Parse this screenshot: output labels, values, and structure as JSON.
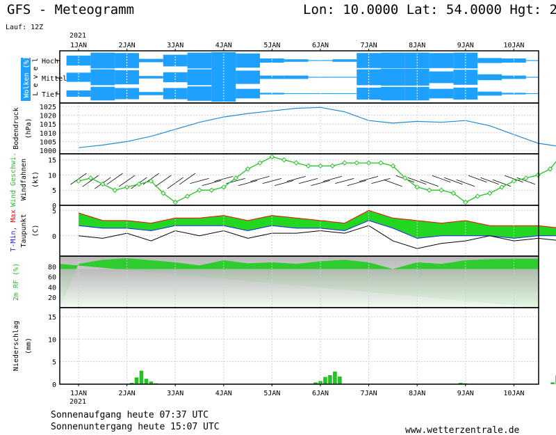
{
  "header": {
    "title": "GFS - Meteogramm",
    "location": "Lon: 10.0000 Lat: 54.0000 Hgt: 2",
    "run": "Lauf: 12Z",
    "year": "2021"
  },
  "dates": [
    "1JAN",
    "2JAN",
    "3JAN",
    "4JAN",
    "5JAN",
    "6JAN",
    "7JAN",
    "8JAN",
    "9JAN",
    "10JAN"
  ],
  "footer": {
    "sunrise": "Sonnenaufgang heute 07:37 UTC",
    "sunset": "Sonnenuntergang heute 15:07 UTC",
    "website": "www.wetterzentrale.de"
  },
  "colors": {
    "cloud": "#1ea0ff",
    "pressure": "#1e8cd2",
    "wind": "#22c322",
    "tmax": "#ff0000",
    "tmin": "#1e1eff",
    "temp_fill": "#22d622",
    "rh_fill": "#2fcc2f",
    "precip": "#22c322"
  },
  "chart_data": [
    {
      "type": "heatmap",
      "name": "clouds",
      "ylabel": "Wolken (%)",
      "ylabel2": "L e v e l",
      "levels": [
        "Hoch",
        "Mittel",
        "Tief"
      ],
      "x": [
        0,
        0.5,
        1,
        1.5,
        2,
        2.5,
        3,
        3.5,
        4,
        4.5,
        5,
        5.5,
        6,
        6.5,
        7,
        7.5,
        8,
        8.5,
        9,
        9.5
      ],
      "values": {
        "Hoch": [
          60,
          95,
          90,
          20,
          70,
          95,
          100,
          85,
          25,
          15,
          5,
          15,
          90,
          95,
          95,
          90,
          95,
          30,
          25,
          5
        ],
        "Mittel": [
          55,
          95,
          85,
          15,
          60,
          95,
          100,
          80,
          20,
          20,
          5,
          5,
          95,
          100,
          100,
          70,
          90,
          35,
          20,
          5
        ],
        "Tief": [
          40,
          85,
          70,
          20,
          70,
          90,
          100,
          60,
          10,
          5,
          5,
          5,
          75,
          85,
          85,
          60,
          75,
          25,
          10,
          5
        ]
      }
    },
    {
      "type": "line",
      "name": "pressure",
      "ylabel": "Bodendruck",
      "unit": "(hPa)",
      "ylim": [
        998,
        1027
      ],
      "yticks": [
        1000,
        1005,
        1010,
        1015,
        1020,
        1025
      ],
      "x": [
        0,
        0.5,
        1,
        1.5,
        2,
        2.5,
        3,
        3.5,
        4,
        4.5,
        5,
        5.5,
        6,
        6.5,
        7,
        7.5,
        8,
        8.5,
        9,
        9.5,
        10,
        10.5
      ],
      "values": [
        1001.5,
        1003,
        1005,
        1008,
        1012,
        1016,
        1019,
        1021,
        1022.5,
        1024,
        1024.5,
        1022,
        1017,
        1015.5,
        1016.5,
        1016,
        1017,
        1014,
        1009,
        1004,
        1002,
        1002.5
      ]
    },
    {
      "type": "line",
      "name": "wind",
      "ylabel": "Wind Geschwi.",
      "ylabel2": "Windfahnen",
      "unit": "(kt)",
      "ylim": [
        0,
        17
      ],
      "yticks": [
        0,
        5,
        10,
        15
      ],
      "x": [
        0,
        0.25,
        0.5,
        0.75,
        1,
        1.25,
        1.5,
        1.75,
        2,
        2.25,
        2.5,
        2.75,
        3,
        3.25,
        3.5,
        3.75,
        4,
        4.25,
        4.5,
        4.75,
        5,
        5.25,
        5.5,
        5.75,
        6,
        6.25,
        6.5,
        6.75,
        7,
        7.25,
        7.5,
        7.75,
        8,
        8.25,
        8.5,
        8.75,
        9,
        9.25,
        9.5,
        9.75,
        10,
        10.25,
        10.5
      ],
      "values": [
        8,
        9,
        7,
        5,
        6,
        7,
        8,
        4,
        1,
        3,
        5,
        5,
        6,
        9,
        12,
        14,
        16,
        15,
        14,
        13,
        13,
        13,
        14,
        14,
        14,
        14,
        13,
        9,
        6,
        5,
        5,
        4,
        1,
        3,
        4,
        6,
        8,
        9,
        10,
        12,
        17,
        14,
        9
      ]
    },
    {
      "type": "area",
      "name": "temperature",
      "ylabel": "T-Min, Max",
      "ylabel2": "Taupunkt",
      "unit": "(C)",
      "ylim": [
        -4,
        6
      ],
      "yticks": [
        0,
        5
      ],
      "x": [
        0,
        0.5,
        1,
        1.5,
        2,
        2.5,
        3,
        3.5,
        4,
        4.5,
        5,
        5.5,
        6,
        6.5,
        7,
        7.5,
        8,
        8.5,
        9,
        9.5,
        10,
        10.5
      ],
      "series": [
        {
          "name": "T-Max",
          "values": [
            4.5,
            3,
            3,
            2.5,
            3.5,
            3.5,
            4,
            3,
            4,
            3.5,
            3,
            2.5,
            5,
            3.5,
            3,
            2.5,
            3,
            2,
            2,
            2,
            1.5,
            0.5
          ]
        },
        {
          "name": "T-Min",
          "values": [
            2,
            1.5,
            1.5,
            1,
            2,
            2,
            2,
            1,
            2,
            1.5,
            1.5,
            1,
            3,
            1.5,
            -0.5,
            0,
            0,
            0,
            -0.5,
            0,
            0,
            -0.5
          ]
        },
        {
          "name": "Taupunkt",
          "values": [
            0,
            -0.5,
            0.5,
            -1,
            1,
            0,
            1,
            -0.5,
            0.5,
            0.5,
            1,
            0.5,
            2,
            -1,
            -2.5,
            -1.5,
            -1,
            0,
            -1,
            -0.5,
            -1,
            -0.5
          ]
        }
      ]
    },
    {
      "type": "area",
      "name": "humidity",
      "ylabel": "2m RF (%)",
      "ylim": [
        0,
        100
      ],
      "yticks": [
        20,
        40,
        60,
        80
      ],
      "x": [
        0,
        0.5,
        1,
        1.5,
        2,
        2.5,
        3,
        3.5,
        4,
        4.5,
        5,
        5.5,
        6,
        6.5,
        7,
        7.5,
        8,
        8.5,
        9,
        9.5,
        10,
        10.5
      ],
      "values": [
        85,
        93,
        96,
        92,
        88,
        82,
        92,
        86,
        88,
        85,
        90,
        93,
        88,
        75,
        88,
        85,
        92,
        94,
        95,
        95,
        95,
        95
      ]
    },
    {
      "type": "bar",
      "name": "precipitation",
      "ylabel": "Niederschlag",
      "unit": "(mm)",
      "ylim": [
        0,
        17
      ],
      "yticks": [
        0,
        5,
        10,
        15
      ],
      "x": [
        1.1,
        1.2,
        1.3,
        1.4,
        1.5,
        1.6,
        4.9,
        5.0,
        5.1,
        5.2,
        5.3,
        5.4,
        7.9,
        8.0,
        9.8,
        9.9,
        10.0,
        10.1,
        10.2,
        10.3,
        10.4
      ],
      "values": [
        0.3,
        1.5,
        3,
        1.2,
        0.6,
        0.2,
        0.4,
        0.7,
        1.6,
        2,
        2.8,
        1.7,
        0.3,
        0.2,
        0.4,
        2,
        3.8,
        4.2,
        2.8,
        2.5,
        2.6
      ]
    }
  ]
}
